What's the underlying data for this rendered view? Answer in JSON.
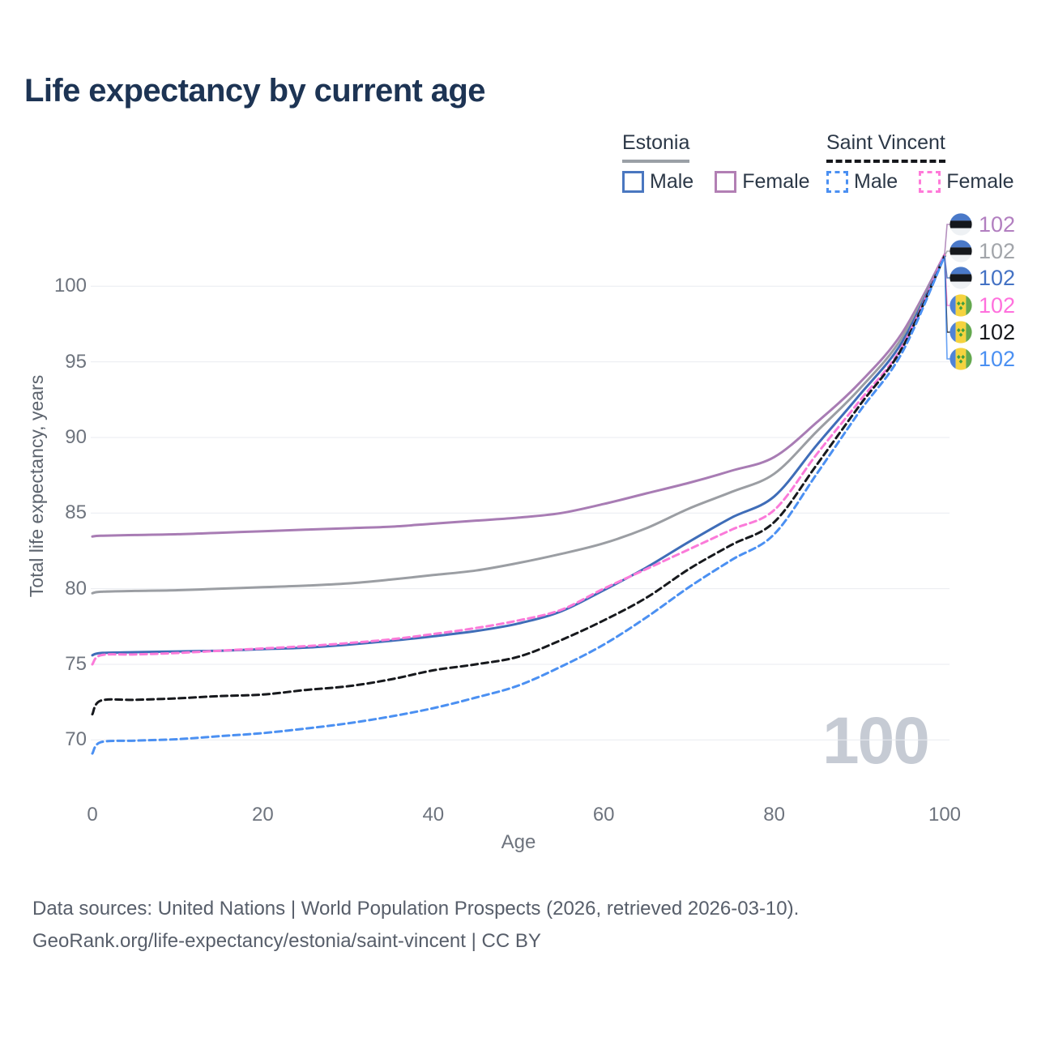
{
  "header": {
    "title": "Life expectancy by current age",
    "title_color": "#1d3454"
  },
  "legend": {
    "groups": [
      {
        "label": "Estonia",
        "line_style": "solid",
        "underline_color": "#9aa0a6",
        "items": [
          {
            "label": "Male",
            "color": "#4a77c0",
            "dashed": false
          },
          {
            "label": "Female",
            "color": "#b27fb4",
            "dashed": false
          }
        ]
      },
      {
        "label": "Saint Vincent",
        "line_style": "dashed",
        "underline_color": "#16181c",
        "items": [
          {
            "label": "Male",
            "color": "#4b90f2",
            "dashed": true
          },
          {
            "label": "Female",
            "color": "#ff7ad9",
            "dashed": true
          }
        ]
      }
    ]
  },
  "chart_data": {
    "type": "line",
    "title": "Life expectancy by current age",
    "xlabel": "Age",
    "ylabel": "Total life expectancy, years",
    "x_ticks": [
      0,
      20,
      40,
      60,
      80,
      100
    ],
    "y_ticks": [
      70,
      75,
      80,
      85,
      90,
      95,
      100
    ],
    "xlim": [
      0,
      100
    ],
    "ylim": [
      67.5,
      103
    ],
    "grid": "horizontal",
    "gridline_color": "#e9ebf0",
    "x": [
      0,
      1,
      5,
      10,
      15,
      20,
      25,
      30,
      35,
      40,
      45,
      50,
      55,
      60,
      65,
      70,
      75,
      80,
      85,
      90,
      95,
      100
    ],
    "series": [
      {
        "name": "Estonia Female",
        "country": "Estonia",
        "sex": "Female",
        "color": "#a87cb4",
        "label_color": "#b27fc0",
        "dashed": false,
        "flag": "estonia",
        "end_label": "102",
        "values": [
          83.45,
          83.5,
          83.55,
          83.6,
          83.7,
          83.8,
          83.9,
          84.0,
          84.1,
          84.3,
          84.5,
          84.7,
          85.0,
          85.6,
          86.3,
          87.0,
          87.8,
          88.7,
          91.0,
          93.6,
          96.9,
          102.1
        ]
      },
      {
        "name": "Estonia Total",
        "country": "Estonia",
        "sex": "Total",
        "color": "#9b9ea3",
        "label_color": "#a2a5aa",
        "dashed": false,
        "flag": "estonia",
        "end_label": "102",
        "values": [
          79.7,
          79.8,
          79.85,
          79.9,
          80.0,
          80.1,
          80.2,
          80.35,
          80.6,
          80.9,
          81.2,
          81.7,
          82.3,
          83.0,
          84.0,
          85.3,
          86.4,
          87.6,
          90.4,
          93.2,
          96.6,
          102.0
        ]
      },
      {
        "name": "Estonia Male",
        "country": "Estonia",
        "sex": "Male",
        "color": "#3f6db8",
        "label_color": "#4472c4",
        "dashed": false,
        "flag": "estonia",
        "end_label": "102",
        "values": [
          75.6,
          75.75,
          75.8,
          75.85,
          75.9,
          76.0,
          76.1,
          76.3,
          76.55,
          76.85,
          77.2,
          77.7,
          78.5,
          79.9,
          81.4,
          83.1,
          84.7,
          86.1,
          89.5,
          92.8,
          96.3,
          102.0
        ]
      },
      {
        "name": "Saint Vincent Female",
        "country": "Saint Vincent",
        "sex": "Female",
        "color": "#fb7ad9",
        "label_color": "#ff70dd",
        "dashed": true,
        "flag": "saint-vincent",
        "end_label": "102",
        "values": [
          75.0,
          75.6,
          75.65,
          75.75,
          75.9,
          76.05,
          76.2,
          76.4,
          76.65,
          77.0,
          77.4,
          77.9,
          78.6,
          80.0,
          81.3,
          82.6,
          83.9,
          85.2,
          88.9,
          92.4,
          96.0,
          102.1
        ]
      },
      {
        "name": "Saint Vincent Total",
        "country": "Saint Vincent",
        "sex": "Total",
        "color": "#17191d",
        "label_color": "#17191d",
        "dashed": true,
        "flag": "saint-vincent",
        "end_label": "102",
        "values": [
          71.7,
          72.6,
          72.65,
          72.75,
          72.9,
          73.0,
          73.3,
          73.55,
          74.0,
          74.6,
          75.0,
          75.5,
          76.6,
          77.9,
          79.4,
          81.3,
          82.9,
          84.4,
          88.2,
          92.1,
          95.9,
          102.0
        ]
      },
      {
        "name": "Saint Vincent Male",
        "country": "Saint Vincent",
        "sex": "Male",
        "color": "#4b90f2",
        "label_color": "#4b90f2",
        "dashed": true,
        "flag": "saint-vincent",
        "end_label": "102",
        "values": [
          69.1,
          69.85,
          69.95,
          70.05,
          70.25,
          70.45,
          70.75,
          71.1,
          71.55,
          72.1,
          72.8,
          73.6,
          74.85,
          76.3,
          78.1,
          80.1,
          81.9,
          83.6,
          87.6,
          91.7,
          95.6,
          102.0
        ]
      }
    ],
    "flag_colors": {
      "estonia": {
        "top": "#4a79c8",
        "middle": "#15181c",
        "bottom": "#eef1f4"
      },
      "saint_vincent": {
        "blue": "#4f83d6",
        "yellow": "#f5d33f",
        "green": "#63a84e",
        "diamond": "#3f9e3f"
      }
    }
  },
  "watermark": {
    "text": "100"
  },
  "footer": {
    "line1": "Data sources: United Nations | World Population Prospects (2026, retrieved 2026-03-10).",
    "line2": "GeoRank.org/life-expectancy/estonia/saint-vincent | CC BY"
  }
}
